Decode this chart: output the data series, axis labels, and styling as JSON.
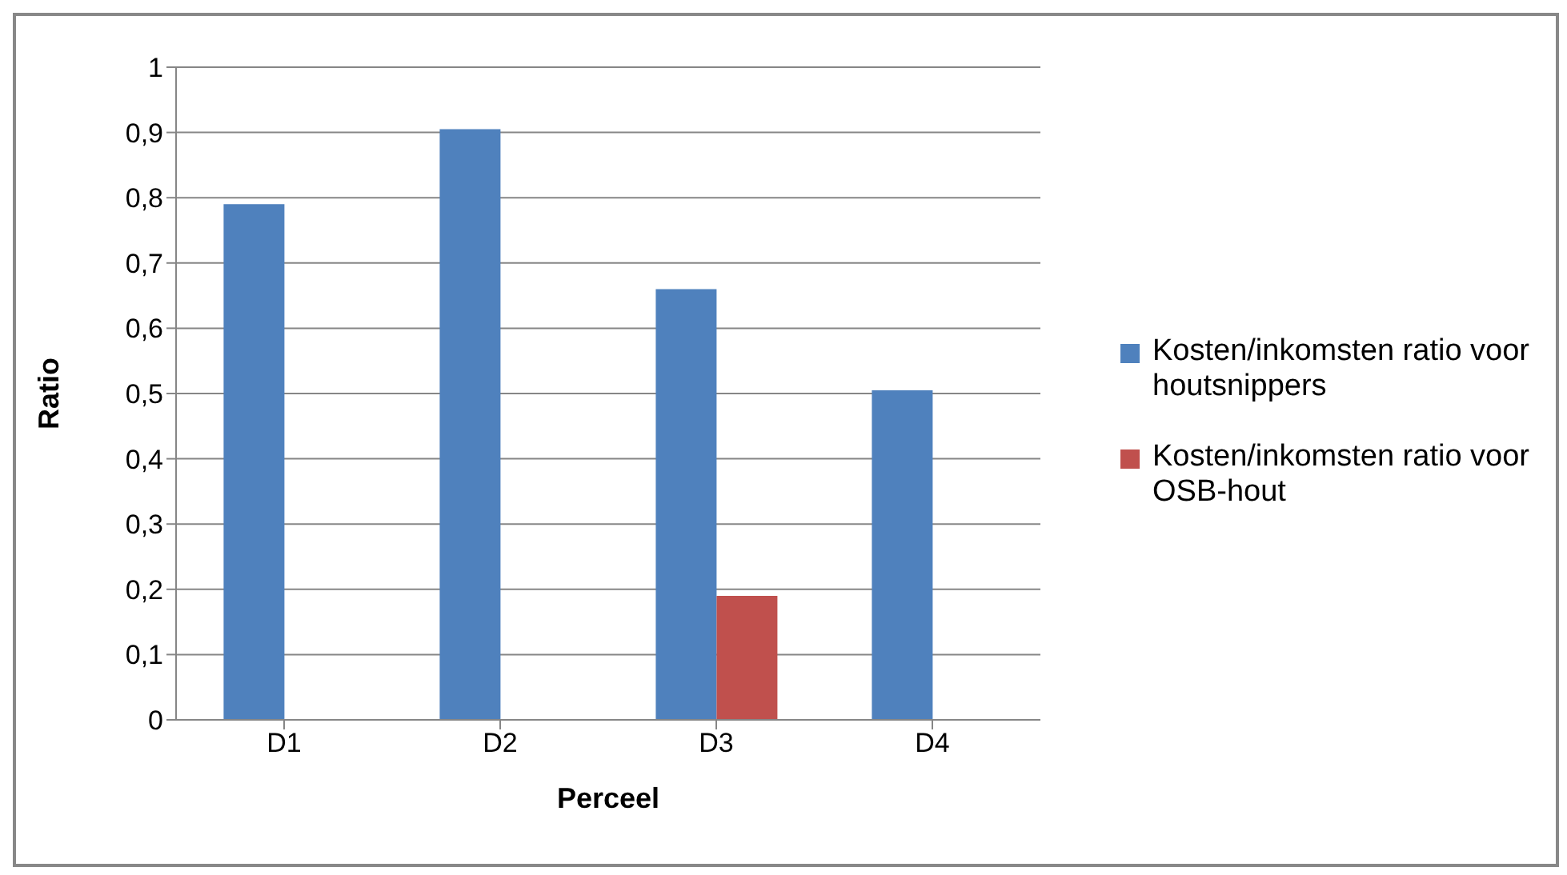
{
  "chart_data": {
    "type": "bar",
    "xlabel": "Perceel",
    "ylabel": "Ratio",
    "categories": [
      "D1",
      "D2",
      "D3",
      "D4"
    ],
    "series": [
      {
        "name": "Kosten/inkomsten ratio voor houtsnippers",
        "color": "#4f81bd",
        "values": [
          0.79,
          0.905,
          0.66,
          0.505
        ]
      },
      {
        "name": "Kosten/inkomsten ratio voor OSB-hout",
        "color": "#c0504d",
        "values": [
          null,
          null,
          0.19,
          null
        ]
      }
    ],
    "ylim": [
      0,
      1
    ],
    "yticks": [
      0,
      {
        "value": 0.1,
        "label": "0,1"
      },
      {
        "value": 0.2,
        "label": "0,2"
      },
      {
        "value": 0.3,
        "label": "0,3"
      },
      {
        "value": 0.4,
        "label": "0,4"
      },
      {
        "value": 0.5,
        "label": "0,5"
      },
      {
        "value": 0.6,
        "label": "0,6"
      },
      {
        "value": 0.7,
        "label": "0,7"
      },
      {
        "value": 0.8,
        "label": "0,8"
      },
      {
        "value": 0.9,
        "label": "0,9"
      },
      1
    ],
    "grid": "y",
    "legend": "right"
  }
}
